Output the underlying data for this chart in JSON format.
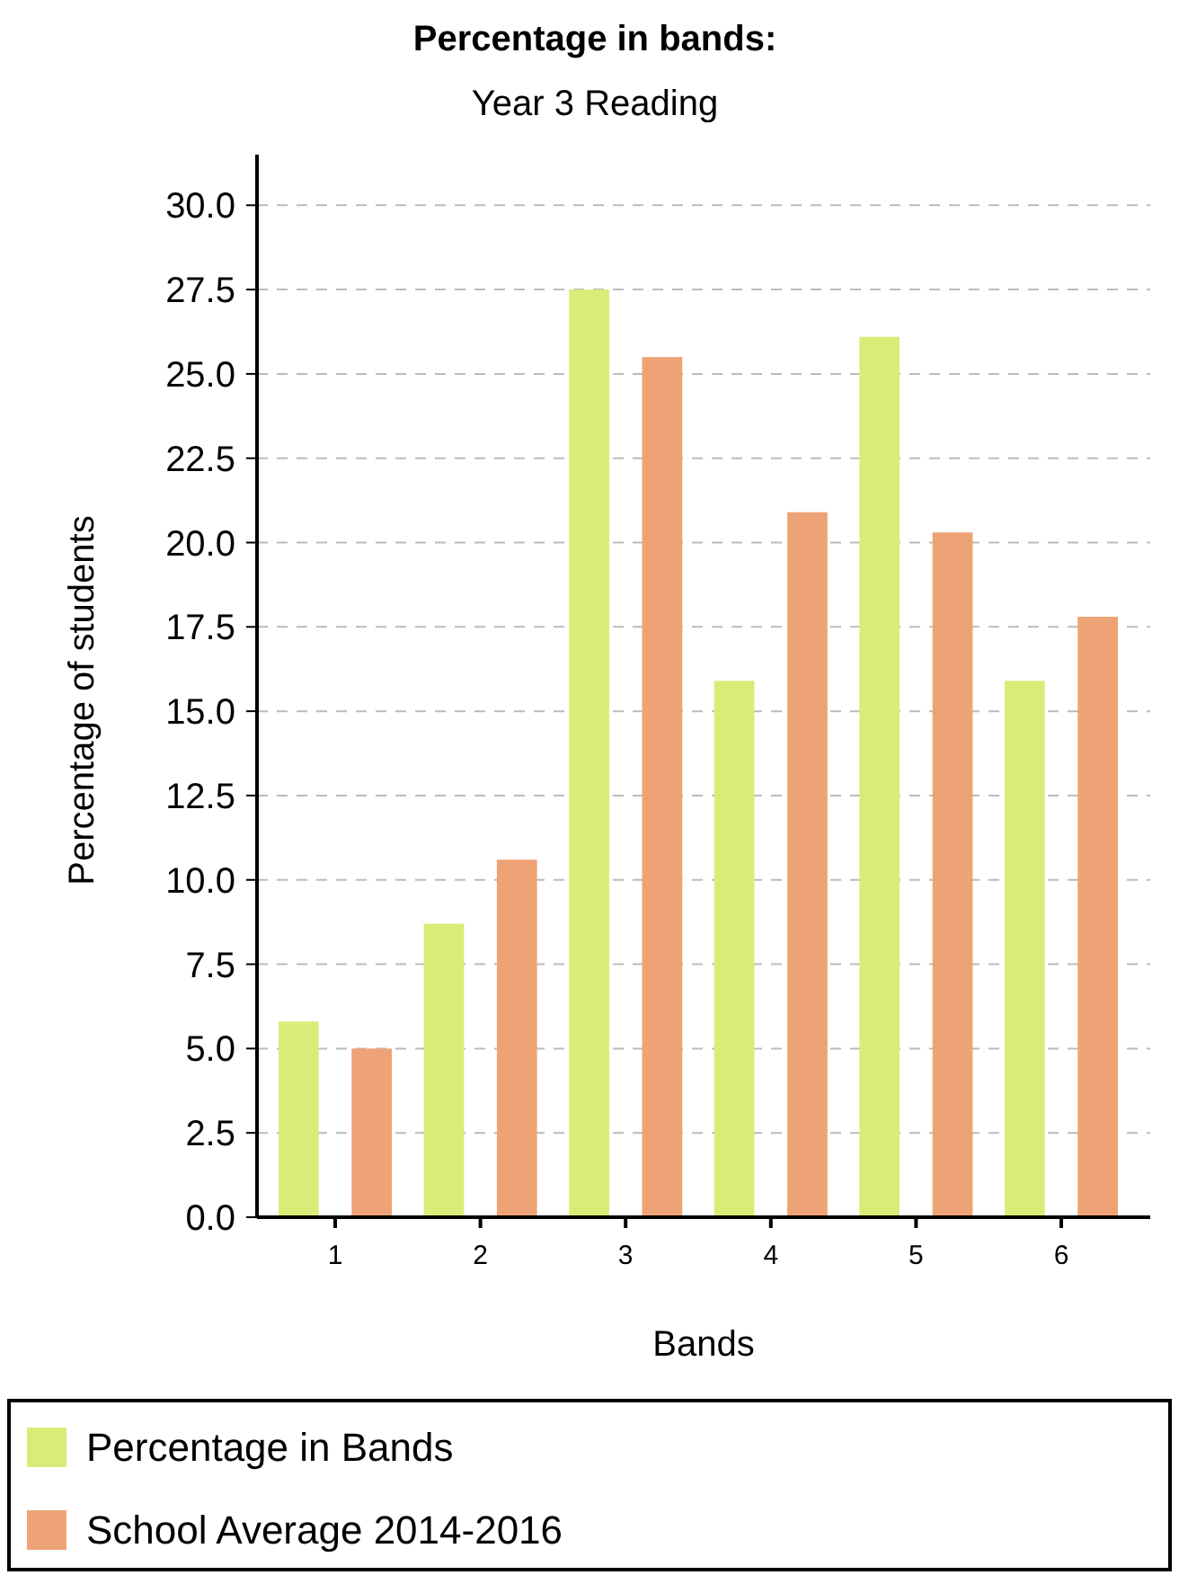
{
  "chart_data": {
    "type": "bar",
    "title": "Percentage in bands:",
    "subtitle": "Year 3 Reading",
    "xlabel": "Bands",
    "ylabel": "Percentage of students",
    "categories": [
      "1",
      "2",
      "3",
      "4",
      "5",
      "6"
    ],
    "series": [
      {
        "name": "Percentage in Bands",
        "color": "#d8ed78",
        "values": [
          5.8,
          8.7,
          27.5,
          15.9,
          26.1,
          15.9
        ]
      },
      {
        "name": "School Average 2014-2016",
        "color": "#eea377",
        "values": [
          5.0,
          10.6,
          25.5,
          20.9,
          20.3,
          17.8
        ]
      }
    ],
    "ylim": [
      0,
      31.5
    ],
    "yticks": [
      {
        "value": 0,
        "label": "0.0"
      },
      {
        "value": 2.5,
        "label": "2.5"
      },
      {
        "value": 5,
        "label": "5.0"
      },
      {
        "value": 7.5,
        "label": "7.5"
      },
      {
        "value": 10,
        "label": "10.0"
      },
      {
        "value": 12.5,
        "label": "12.5"
      },
      {
        "value": 15,
        "label": "15.0"
      },
      {
        "value": 17.5,
        "label": "17.5"
      },
      {
        "value": 20,
        "label": "20.0"
      },
      {
        "value": 22.5,
        "label": "22.5"
      },
      {
        "value": 25,
        "label": "25.0"
      },
      {
        "value": 27.5,
        "label": "27.5"
      },
      {
        "value": 30,
        "label": "30.0"
      }
    ],
    "grid": "y",
    "legend": "bottom"
  }
}
